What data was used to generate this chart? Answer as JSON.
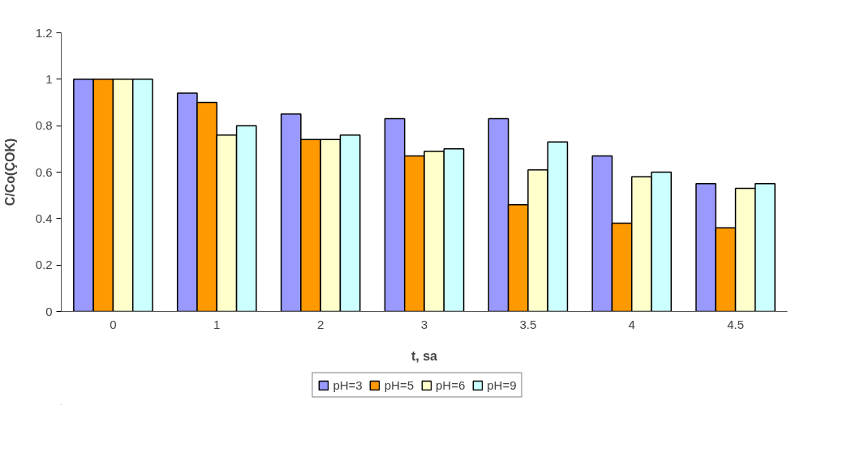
{
  "chart_data": {
    "type": "bar",
    "xlabel": "t, sa",
    "ylabel": "C/Co(ÇOK)",
    "categories": [
      "0",
      "1",
      "2",
      "3",
      "3.5",
      "4",
      "4.5"
    ],
    "series": [
      {
        "name": "pH=3",
        "color": "#9999ff",
        "values": [
          1.0,
          0.94,
          0.85,
          0.83,
          0.83,
          0.67,
          0.55
        ]
      },
      {
        "name": "pH=5",
        "color": "#ff9900",
        "values": [
          1.0,
          0.9,
          0.74,
          0.67,
          0.46,
          0.38,
          0.36
        ]
      },
      {
        "name": "pH=6",
        "color": "#ffffcc",
        "values": [
          1.0,
          0.76,
          0.74,
          0.69,
          0.61,
          0.58,
          0.53
        ]
      },
      {
        "name": "pH=9",
        "color": "#ccffff",
        "values": [
          1.0,
          0.8,
          0.76,
          0.7,
          0.73,
          0.6,
          0.55
        ]
      }
    ],
    "ylim": [
      0,
      1.2
    ],
    "yticks": [
      0,
      0.2,
      0.4,
      0.6,
      0.8,
      1,
      1.2
    ],
    "grid": false,
    "legend": "bottom"
  }
}
